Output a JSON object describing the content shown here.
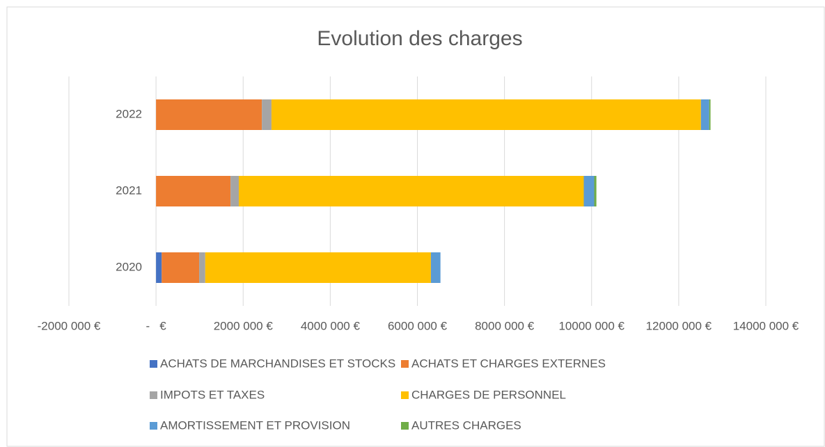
{
  "chart_data": {
    "type": "stacked_barh",
    "title": "Evolution des charges",
    "categories": [
      "2020",
      "2021",
      "2022"
    ],
    "series": [
      {
        "name": "ACHATS DE MARCHANDISES ET STOCKS",
        "color": "#4472c4",
        "values": [
          130000,
          0,
          0
        ]
      },
      {
        "name": "ACHATS ET CHARGES EXTERNES",
        "color": "#ed7d31",
        "values": [
          860000,
          1710000,
          2430000
        ]
      },
      {
        "name": "IMPOTS ET TAXES",
        "color": "#a5a5a5",
        "values": [
          140000,
          190000,
          220000
        ]
      },
      {
        "name": "CHARGES DE PERSONNEL",
        "color": "#ffc000",
        "values": [
          5180000,
          7920000,
          9860000
        ]
      },
      {
        "name": "AMORTISSEMENT ET PROVISION",
        "color": "#5b9bd5",
        "values": [
          220000,
          240000,
          190000
        ]
      },
      {
        "name": "AUTRES CHARGES",
        "color": "#70ad47",
        "values": [
          0,
          50000,
          30000
        ]
      }
    ],
    "xlim": [
      -2000000,
      14000000
    ],
    "xticks": [
      {
        "value": -2000000,
        "label": "-2000 000 €"
      },
      {
        "value": 0,
        "label": "-   €"
      },
      {
        "value": 2000000,
        "label": "2000 000 €"
      },
      {
        "value": 4000000,
        "label": "4000 000 €"
      },
      {
        "value": 6000000,
        "label": "6000 000 €"
      },
      {
        "value": 8000000,
        "label": "8000 000 €"
      },
      {
        "value": 10000000,
        "label": "10000 000 €"
      },
      {
        "value": 12000000,
        "label": "12000 000 €"
      },
      {
        "value": 14000000,
        "label": "14000 000 €"
      }
    ],
    "grid": true,
    "legend": "bottom"
  }
}
